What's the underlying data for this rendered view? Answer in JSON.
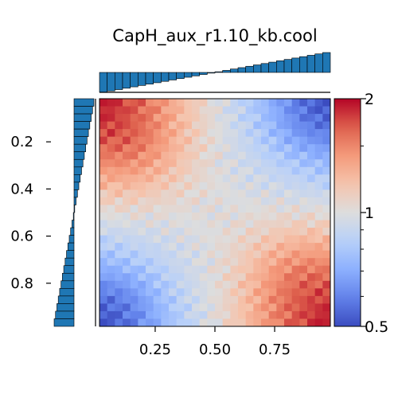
{
  "chart_data": {
    "type": "heatmap",
    "title": "CapH_aux_r1.10_kb.cool",
    "x_ticks": [
      "0.25",
      "0.50",
      "0.75"
    ],
    "x_tick_values": [
      0.25,
      0.5,
      0.75
    ],
    "y_ticks": [
      "0.2",
      "0.4",
      "0.6",
      "0.8"
    ],
    "y_tick_values": [
      0.2,
      0.4,
      0.6,
      0.8
    ],
    "xlim": [
      0.017,
      0.983
    ],
    "ylim": [
      0.017,
      0.983
    ],
    "grid_size": 30,
    "colorbar": {
      "scale": "log",
      "range": [
        0.5,
        2
      ],
      "ticks": [
        "0.5",
        "1",
        "2"
      ],
      "tick_values": [
        0.5,
        1,
        2
      ],
      "colormap": "coolwarm"
    },
    "top_marginal": {
      "type": "bar",
      "trend": "increasing",
      "bars": 30,
      "start_value": -0.55,
      "end_value": 0.55
    },
    "left_marginal": {
      "type": "barh",
      "trend": "increasing-downward",
      "bars": 30,
      "start_value": -0.6,
      "end_value": 0.6
    },
    "colors": {
      "bar_fill": "#1f77b4",
      "bar_edge": "#000000"
    }
  }
}
